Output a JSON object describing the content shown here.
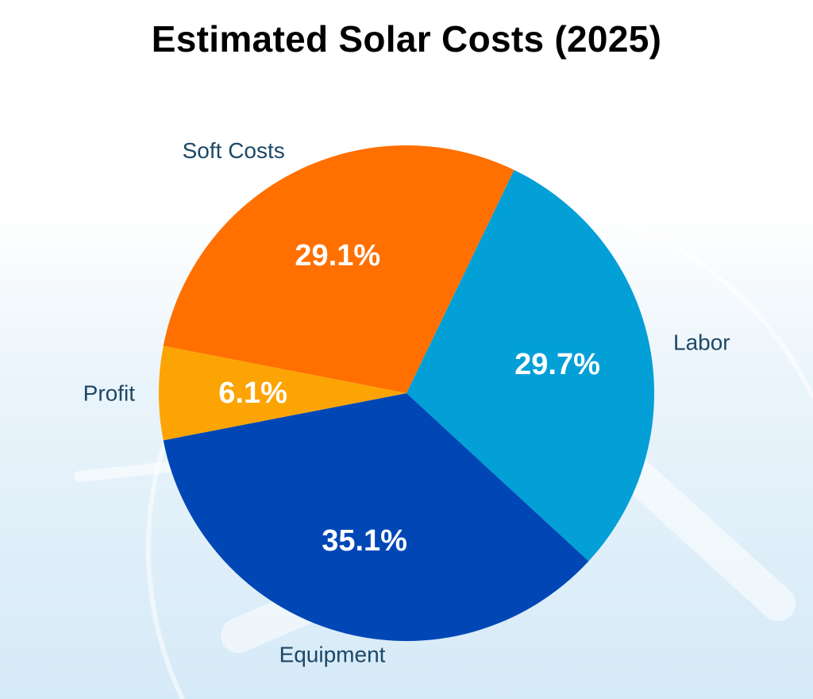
{
  "page": {
    "title": "Estimated Solar Costs (2025)"
  },
  "chart_data": {
    "type": "pie",
    "title": "Estimated Solar Costs (2025)",
    "unit": "%",
    "start_angle_deg": -169,
    "direction": "clockwise",
    "slices": [
      {
        "key": "soft-costs",
        "label": "Soft Costs",
        "value": 29.1,
        "value_label": "29.1%",
        "color": "#ff7000"
      },
      {
        "key": "labor",
        "label": "Labor",
        "value": 29.7,
        "value_label": "29.7%",
        "color": "#039fd7"
      },
      {
        "key": "equipment",
        "label": "Equipment",
        "value": 35.1,
        "value_label": "35.1%",
        "color": "#0047b5"
      },
      {
        "key": "profit",
        "label": "Profit",
        "value": 6.1,
        "value_label": "6.1%",
        "color": "#fca404"
      }
    ],
    "label_color": "#1c4866",
    "value_label_color": "#ffffff"
  }
}
